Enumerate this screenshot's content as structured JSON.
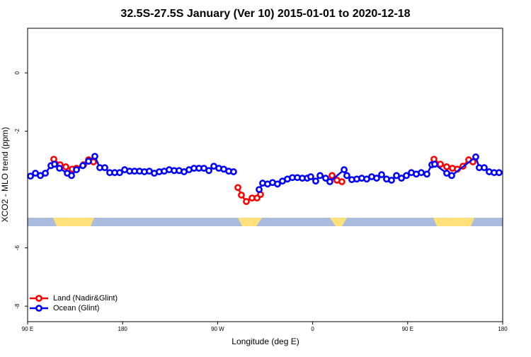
{
  "chart_data": {
    "type": "line",
    "title": "32.5S-27.5S January (Ver 10)   2015-01-01 to 2020-12-18",
    "x_label": "Longitude (deg E)",
    "y_label": "XCO2 - MLO trend (ppm)",
    "xlim": [
      90,
      540
    ],
    "ylim": [
      -8.53,
      1.53
    ],
    "xticks": [
      {
        "value": 90,
        "label": "90 E"
      },
      180,
      {
        "value": 270,
        "label": "90 W"
      },
      {
        "value": 360,
        "label": "0"
      },
      {
        "value": 450,
        "label": "90 E"
      },
      {
        "value": 540,
        "label": "180"
      }
    ],
    "yticks": [
      -8,
      -6,
      -2,
      0
    ],
    "legend": "bottom-left",
    "series": [
      {
        "name": "Land (Nadir&Glint)",
        "color": "#ff0000",
        "x": [
          114.8,
          120.8,
          126.2,
          132.2,
          136.3,
          143.0,
          147.7,
          152.4,
          null,
          289.2,
          292.5,
          297.2,
          302.6,
          307.3,
          310.6,
          null,
          378.4,
          383.0,
          387.7,
          null,
          474.9,
          481.0,
          487.0,
          492.4,
          497.1,
          502.4,
          507.8,
          511.8
        ],
        "values": [
          -2.96,
          -3.15,
          -3.22,
          -3.3,
          -3.27,
          -3.15,
          -2.98,
          -3.05,
          null,
          -3.93,
          -4.19,
          -4.41,
          -4.29,
          -4.29,
          -4.17,
          null,
          -3.52,
          -3.68,
          -3.73,
          null,
          -2.96,
          -3.13,
          -3.22,
          -3.27,
          -3.3,
          -3.2,
          -2.98,
          -3.05
        ]
      },
      {
        "name": "Ocean (Glint)",
        "color": "#0000ff",
        "x": [
          92.7,
          97.4,
          102.1,
          106.8,
          112.1,
          115.5,
          120.2,
          127.6,
          131.6,
          136.3,
          142.3,
          147.7,
          153.7,
          158.4,
          163.1,
          167.8,
          172.5,
          177.2,
          181.9,
          186.6,
          191.3,
          196.0,
          200.6,
          205.3,
          210.0,
          214.7,
          219.4,
          224.1,
          228.8,
          233.5,
          238.2,
          242.9,
          247.6,
          252.3,
          257.0,
          261.7,
          266.4,
          271.1,
          275.8,
          280.5,
          285.1,
          null,
          309.3,
          312.6,
          317.3,
          322.0,
          326.7,
          331.4,
          336.1,
          340.8,
          345.5,
          350.2,
          354.9,
          358.2,
          362.9,
          367.0,
          372.3,
          376.3,
          389.8,
          392.4,
          397.1,
          401.8,
          406.5,
          411.2,
          415.9,
          420.6,
          425.3,
          430.0,
          434.7,
          439.4,
          444.1,
          448.8,
          453.5,
          458.2,
          462.9,
          468.2,
          472.9,
          475.6,
          487.0,
          491.7,
          514.5,
          517.8,
          522.5,
          527.2,
          531.9,
          536.6
        ],
        "values": [
          -3.54,
          -3.44,
          -3.52,
          -3.44,
          -3.18,
          -3.13,
          -3.27,
          -3.44,
          -3.52,
          -3.32,
          -3.18,
          -3.03,
          -2.86,
          -3.25,
          -3.25,
          -3.42,
          -3.42,
          -3.42,
          -3.32,
          -3.37,
          -3.37,
          -3.37,
          -3.39,
          -3.37,
          -3.44,
          -3.39,
          -3.37,
          -3.32,
          -3.35,
          -3.35,
          -3.39,
          -3.32,
          -3.27,
          -3.27,
          -3.27,
          -3.35,
          -3.2,
          -3.27,
          -3.3,
          -3.37,
          -3.39,
          null,
          -4.0,
          -3.78,
          -3.81,
          -3.76,
          -3.81,
          -3.71,
          -3.64,
          -3.59,
          -3.59,
          -3.61,
          -3.61,
          -3.56,
          -3.71,
          -3.52,
          -3.61,
          -3.73,
          -3.32,
          -3.52,
          -3.66,
          -3.64,
          -3.61,
          -3.64,
          -3.56,
          -3.61,
          -3.49,
          -3.64,
          -3.68,
          -3.52,
          -3.61,
          -3.52,
          -3.42,
          -3.47,
          -3.42,
          -3.47,
          -3.15,
          -3.13,
          -3.44,
          -3.52,
          -2.88,
          -3.25,
          -3.25,
          -3.39,
          -3.42,
          -3.42
        ]
      }
    ]
  }
}
